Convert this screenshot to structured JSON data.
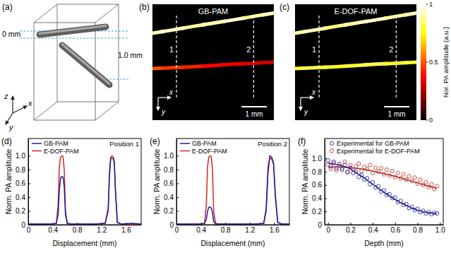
{
  "chart_data": [
    {
      "type": "diagram",
      "label": "(a)",
      "depth_labels": [
        "0 mm",
        "1.0 mm"
      ],
      "axis_labels": [
        "z",
        "x",
        "y"
      ]
    },
    {
      "type": "heatmap",
      "label": "(b)",
      "title": "GB-PAM",
      "xlim": [
        0,
        4.8
      ],
      "ylim": [
        0,
        4.6
      ],
      "tick_labels": false,
      "axis_labels": [
        "x",
        "y"
      ],
      "positions": [
        {
          "label": "1",
          "x": 0.95
        },
        {
          "label": "2",
          "x": 4.0
        }
      ],
      "scale_bar": {
        "length": 1,
        "label": "1 mm"
      },
      "vessels": [
        {
          "x": [
            0,
            0.8,
            1.6,
            2.4,
            3.2,
            4.0,
            4.8
          ],
          "y": [
            1.15,
            1.02,
            0.88,
            0.75,
            0.62,
            0.48,
            0.35
          ],
          "values": [
            0.92,
            0.95,
            0.9,
            0.93,
            0.96,
            0.9,
            0.94
          ]
        },
        {
          "x": [
            0,
            0.8,
            1.6,
            2.4,
            3.2,
            4.0,
            4.8
          ],
          "y": [
            2.55,
            2.52,
            2.48,
            2.43,
            2.38,
            2.34,
            2.3
          ],
          "values": [
            0.5,
            0.45,
            0.42,
            0.38,
            0.35,
            0.32,
            0.3
          ]
        }
      ]
    },
    {
      "type": "heatmap",
      "label": "(c)",
      "title": "E-DOF-PAM",
      "xlim": [
        0,
        4.8
      ],
      "ylim": [
        0,
        4.6
      ],
      "tick_labels": false,
      "axis_labels": [
        "x",
        "y"
      ],
      "positions": [
        {
          "label": "1",
          "x": 0.95
        },
        {
          "label": "2",
          "x": 4.0
        }
      ],
      "scale_bar": {
        "length": 1,
        "label": "1 mm"
      },
      "vessels": [
        {
          "x": [
            0,
            0.8,
            1.6,
            2.4,
            3.2,
            4.0,
            4.8
          ],
          "y": [
            1.15,
            1.02,
            0.88,
            0.75,
            0.62,
            0.48,
            0.35
          ],
          "values": [
            0.9,
            0.93,
            0.88,
            0.92,
            0.95,
            0.9,
            0.93
          ]
        },
        {
          "x": [
            0,
            0.8,
            1.6,
            2.4,
            3.2,
            4.0,
            4.8
          ],
          "y": [
            2.55,
            2.52,
            2.48,
            2.43,
            2.38,
            2.34,
            2.3
          ],
          "values": [
            0.8,
            0.82,
            0.78,
            0.8,
            0.83,
            0.79,
            0.8
          ]
        }
      ],
      "colorbar": {
        "title": "Nor. PA amplitude (a.u.)",
        "range": [
          0,
          1
        ],
        "ticks": [
          0,
          0.5,
          1
        ]
      }
    },
    {
      "type": "line",
      "label": "(d)",
      "annotation": "Position 1",
      "x_label": "Displacement (mm)",
      "y_label": "Norm. PA amplitude",
      "xlim": [
        0,
        1.85
      ],
      "ylim": [
        0,
        1.25
      ],
      "xticks": [
        0,
        0.4,
        0.8,
        1.2,
        1.6
      ],
      "yticks": [
        0,
        0.2,
        0.4,
        0.6,
        0.8,
        {
          "value": 1,
          "label": "1.0"
        }
      ],
      "grid": false,
      "legend": "upper left",
      "x": [
        0,
        0.2,
        0.4,
        0.46,
        0.49,
        0.51,
        0.53,
        0.55,
        0.57,
        0.59,
        0.61,
        0.64,
        0.7,
        0.9,
        1.1,
        1.26,
        1.31,
        1.33,
        1.35,
        1.37,
        1.39,
        1.41,
        1.43,
        1.46,
        1.52,
        1.7,
        1.85
      ],
      "series": [
        {
          "name": "GB-PAM",
          "color": "#1f1f9a",
          "values": [
            0.01,
            0.01,
            0.01,
            0.02,
            0.15,
            0.5,
            0.68,
            0.7,
            0.69,
            0.55,
            0.15,
            0.02,
            0.01,
            0.01,
            0.01,
            0.02,
            0.2,
            0.7,
            0.95,
            0.97,
            0.96,
            0.9,
            0.45,
            0.03,
            0.01,
            0.02,
            0.01
          ]
        },
        {
          "name": "E-DOF-PAM",
          "color": "#d62728",
          "values": [
            0.01,
            0.01,
            0.01,
            0.02,
            0.3,
            0.85,
            0.98,
            1.0,
            0.99,
            0.8,
            0.2,
            0.02,
            0.01,
            0.01,
            0.01,
            0.02,
            0.25,
            0.75,
            0.97,
            1.0,
            0.99,
            0.92,
            0.5,
            0.04,
            0.01,
            0.01,
            0.01
          ]
        }
      ]
    },
    {
      "type": "line",
      "label": "(e)",
      "annotation": "Position 2",
      "x_label": "Displacement (mm)",
      "y_label": "Norm. PA amplitude",
      "xlim": [
        0,
        1.85
      ],
      "ylim": [
        0,
        1.25
      ],
      "xticks": [
        0,
        0.4,
        0.8,
        1.2,
        1.6
      ],
      "yticks": [
        0,
        0.2,
        0.4,
        0.6,
        0.8,
        {
          "value": 1,
          "label": "1.0"
        }
      ],
      "grid": false,
      "legend": "upper left",
      "x": [
        0,
        0.2,
        0.4,
        0.46,
        0.49,
        0.51,
        0.53,
        0.55,
        0.57,
        0.59,
        0.61,
        0.64,
        0.7,
        0.9,
        1.1,
        1.3,
        1.43,
        1.47,
        1.5,
        1.53,
        1.56,
        1.59,
        1.62,
        1.66,
        1.72,
        1.85
      ],
      "series": [
        {
          "name": "GB-PAM",
          "color": "#1f1f9a",
          "values": [
            0.01,
            0.01,
            0.01,
            0.02,
            0.08,
            0.2,
            0.25,
            0.26,
            0.24,
            0.18,
            0.05,
            0.01,
            0.01,
            0.01,
            0.01,
            0.01,
            0.02,
            0.2,
            0.75,
            1.0,
            0.98,
            0.9,
            0.4,
            0.03,
            0.01,
            0.01
          ]
        },
        {
          "name": "E-DOF-PAM",
          "color": "#d62728",
          "values": [
            0.01,
            0.01,
            0.01,
            0.02,
            0.3,
            0.85,
            0.98,
            1.0,
            0.99,
            0.8,
            0.2,
            0.02,
            0.01,
            0.01,
            0.01,
            0.01,
            0.02,
            0.25,
            0.85,
            0.97,
            0.95,
            0.88,
            0.45,
            0.04,
            0.01,
            0.01
          ]
        }
      ]
    },
    {
      "type": "scatter",
      "label": "(f)",
      "x_label": "Depth (mm)",
      "y_label": "Norm. PA amplitude",
      "xlim": [
        -0.03,
        1.03
      ],
      "ylim": [
        0,
        1.3
      ],
      "xticks": [
        0,
        0.2,
        0.4,
        0.6,
        0.8,
        {
          "value": 1,
          "label": "1.0"
        }
      ],
      "yticks": [
        0,
        0.2,
        0.4,
        0.6,
        0.8,
        {
          "value": 1,
          "label": "1.0"
        }
      ],
      "grid": false,
      "legend": "upper left",
      "series": [
        {
          "name": "Experimental for GB-PAM",
          "color": "#2b2b9e",
          "marker": "circle",
          "x": [
            0,
            0.025,
            0.05,
            0.075,
            0.1,
            0.125,
            0.15,
            0.175,
            0.2,
            0.225,
            0.25,
            0.275,
            0.3,
            0.325,
            0.35,
            0.375,
            0.4,
            0.425,
            0.45,
            0.475,
            0.5,
            0.525,
            0.55,
            0.575,
            0.6,
            0.625,
            0.65,
            0.675,
            0.7,
            0.725,
            0.75,
            0.775,
            0.8,
            0.825,
            0.85,
            0.875,
            0.9,
            0.925,
            0.95,
            0.975
          ],
          "values": [
            0.97,
            0.88,
            0.95,
            0.85,
            0.92,
            0.83,
            0.9,
            0.79,
            0.86,
            0.78,
            0.8,
            0.72,
            0.75,
            0.68,
            0.7,
            0.61,
            0.64,
            0.56,
            0.58,
            0.5,
            0.52,
            0.45,
            0.46,
            0.4,
            0.41,
            0.34,
            0.36,
            0.3,
            0.31,
            0.25,
            0.27,
            0.22,
            0.24,
            0.19,
            0.21,
            0.17,
            0.19,
            0.16,
            0.18,
            0.17
          ]
        },
        {
          "name": "Experimental for E-DOF-PAM",
          "color": "#c0392b",
          "marker": "circle",
          "x": [
            0,
            0.025,
            0.05,
            0.075,
            0.1,
            0.125,
            0.15,
            0.175,
            0.2,
            0.225,
            0.25,
            0.275,
            0.3,
            0.325,
            0.35,
            0.375,
            0.4,
            0.425,
            0.45,
            0.475,
            0.5,
            0.525,
            0.55,
            0.575,
            0.6,
            0.625,
            0.65,
            0.675,
            0.7,
            0.725,
            0.75,
            0.775,
            0.8,
            0.825,
            0.85,
            0.875,
            0.9,
            0.925,
            0.95,
            0.975
          ],
          "values": [
            0.91,
            0.84,
            0.93,
            0.82,
            0.89,
            0.85,
            0.95,
            0.8,
            0.9,
            0.83,
            0.88,
            0.92,
            0.81,
            0.87,
            0.84,
            0.9,
            0.78,
            0.86,
            0.8,
            0.85,
            0.76,
            0.83,
            0.74,
            0.81,
            0.72,
            0.78,
            0.7,
            0.76,
            0.68,
            0.73,
            0.66,
            0.71,
            0.62,
            0.68,
            0.6,
            0.64,
            0.57,
            0.61,
            0.54,
            0.58
          ]
        },
        {
          "type": "line",
          "color": "#1f1f8f",
          "x": [
            0,
            0.1,
            0.2,
            0.3,
            0.4,
            0.5,
            0.6,
            0.7,
            0.8,
            0.9,
            0.97
          ],
          "values": [
            0.93,
            0.9,
            0.84,
            0.73,
            0.61,
            0.49,
            0.38,
            0.29,
            0.22,
            0.18,
            0.17
          ]
        },
        {
          "type": "line",
          "color": "#b22222",
          "x": [
            0,
            0.1,
            0.2,
            0.3,
            0.4,
            0.5,
            0.6,
            0.7,
            0.8,
            0.9,
            0.97
          ],
          "values": [
            0.87,
            0.87,
            0.86,
            0.84,
            0.81,
            0.77,
            0.73,
            0.68,
            0.63,
            0.58,
            0.55
          ]
        }
      ]
    }
  ]
}
